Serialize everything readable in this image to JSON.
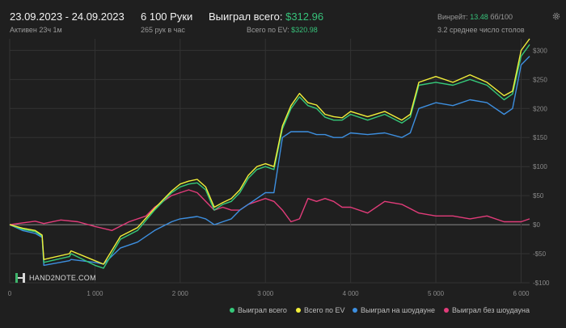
{
  "header": {
    "date_range": "23.09.2023 - 24.09.2023",
    "active": "Активен 23ч 1м",
    "hands": "6 100 Руки",
    "hands_per_hour": "265 рук в час",
    "won_total_label": "Выиграл всего:",
    "won_total_value": "$312.96",
    "ev_total_label": "Всего по EV:",
    "ev_total_value": "$320.98",
    "winrate_label": "Винрейт:",
    "winrate_value": "13.48",
    "winrate_unit": "бб/100",
    "tables": "3.2 среднее число столов"
  },
  "logo": {
    "text": "HAND2NOTE.COM"
  },
  "colors": {
    "won": "#35c97a",
    "ev": "#f2ef3a",
    "showdown": "#3d8fe0",
    "non_showdown": "#e23c7a",
    "background": "#1f1f1f",
    "grid": "#333333"
  },
  "chart_data": {
    "type": "line",
    "xlim": [
      0,
      6100
    ],
    "ylim": [
      -100,
      320
    ],
    "x_ticks": [
      0,
      1000,
      2000,
      3000,
      4000,
      5000,
      6000
    ],
    "x_tick_labels": [
      "0",
      "1 000",
      "2 000",
      "3 000",
      "4 000",
      "5 000",
      "6 000"
    ],
    "y_ticks": [
      -100,
      -50,
      0,
      50,
      100,
      150,
      200,
      250,
      300
    ],
    "y_tick_labels": [
      "-$100",
      "-$50",
      "$0",
      "$50",
      "$100",
      "$150",
      "$200",
      "$250",
      "$300"
    ],
    "legend_position": "bottom-right",
    "series": [
      {
        "name": "Выиграл всего",
        "key": "won",
        "x": [
          0,
          150,
          300,
          380,
          400,
          700,
          720,
          1000,
          1100,
          1300,
          1500,
          1700,
          1900,
          2000,
          2100,
          2200,
          2300,
          2400,
          2500,
          2600,
          2700,
          2800,
          2900,
          3000,
          3100,
          3200,
          3300,
          3400,
          3500,
          3600,
          3700,
          3800,
          3900,
          4000,
          4200,
          4400,
          4600,
          4700,
          4800,
          5000,
          5200,
          5400,
          5600,
          5800,
          5900,
          6000,
          6100
        ],
        "y": [
          0,
          -8,
          -12,
          -20,
          -65,
          -55,
          -50,
          -70,
          -75,
          -25,
          -10,
          25,
          55,
          65,
          70,
          72,
          60,
          25,
          35,
          40,
          55,
          80,
          95,
          100,
          95,
          165,
          200,
          220,
          205,
          200,
          185,
          180,
          180,
          190,
          180,
          190,
          175,
          185,
          240,
          245,
          240,
          250,
          240,
          215,
          225,
          290,
          310
        ]
      },
      {
        "name": "Всего по EV",
        "key": "ev",
        "x": [
          0,
          150,
          300,
          380,
          400,
          700,
          720,
          1000,
          1100,
          1300,
          1500,
          1700,
          1900,
          2000,
          2100,
          2200,
          2300,
          2400,
          2500,
          2600,
          2700,
          2800,
          2900,
          3000,
          3100,
          3200,
          3300,
          3400,
          3500,
          3600,
          3700,
          3800,
          3900,
          4000,
          4200,
          4400,
          4600,
          4700,
          4800,
          5000,
          5200,
          5400,
          5600,
          5800,
          5900,
          6000,
          6100
        ],
        "y": [
          0,
          -6,
          -10,
          -18,
          -60,
          -50,
          -45,
          -62,
          -68,
          -20,
          -5,
          28,
          58,
          70,
          75,
          78,
          65,
          30,
          38,
          45,
          60,
          85,
          100,
          105,
          100,
          170,
          205,
          226,
          210,
          206,
          190,
          186,
          184,
          195,
          186,
          195,
          180,
          190,
          245,
          255,
          245,
          258,
          245,
          222,
          230,
          300,
          320
        ]
      },
      {
        "name": "Выиграл на шоудауне",
        "key": "showdown",
        "x": [
          0,
          150,
          300,
          380,
          400,
          700,
          720,
          1000,
          1100,
          1300,
          1500,
          1700,
          1900,
          2000,
          2100,
          2200,
          2300,
          2400,
          2500,
          2600,
          2700,
          2800,
          2900,
          3000,
          3100,
          3200,
          3300,
          3400,
          3500,
          3600,
          3700,
          3800,
          3900,
          4000,
          4200,
          4400,
          4600,
          4700,
          4800,
          5000,
          5200,
          5400,
          5600,
          5800,
          5900,
          6000,
          6100
        ],
        "y": [
          0,
          -10,
          -15,
          -22,
          -70,
          -62,
          -60,
          -65,
          -68,
          -40,
          -30,
          -10,
          5,
          10,
          12,
          14,
          10,
          0,
          5,
          10,
          25,
          35,
          45,
          55,
          55,
          150,
          160,
          160,
          160,
          155,
          155,
          150,
          150,
          158,
          155,
          158,
          150,
          158,
          200,
          210,
          205,
          215,
          210,
          190,
          200,
          275,
          290
        ]
      },
      {
        "name": "Выиграл без шоудауна",
        "key": "non_showdown",
        "x": [
          0,
          150,
          300,
          400,
          600,
          800,
          1000,
          1200,
          1400,
          1600,
          1700,
          1800,
          1900,
          2000,
          2100,
          2200,
          2300,
          2400,
          2500,
          2600,
          2700,
          2800,
          2900,
          3000,
          3100,
          3200,
          3300,
          3400,
          3500,
          3600,
          3700,
          3800,
          3900,
          4000,
          4200,
          4400,
          4600,
          4800,
          5000,
          5200,
          5400,
          5600,
          5800,
          6000,
          6100
        ],
        "y": [
          0,
          3,
          6,
          2,
          8,
          5,
          -3,
          -10,
          5,
          15,
          30,
          40,
          50,
          55,
          60,
          55,
          40,
          25,
          30,
          25,
          25,
          35,
          40,
          45,
          40,
          25,
          5,
          10,
          45,
          40,
          45,
          40,
          30,
          30,
          20,
          40,
          35,
          20,
          15,
          15,
          10,
          15,
          5,
          5,
          10
        ]
      }
    ]
  },
  "icons": {
    "settings": "gear-icon",
    "logo": "hand2note-logo-icon"
  }
}
